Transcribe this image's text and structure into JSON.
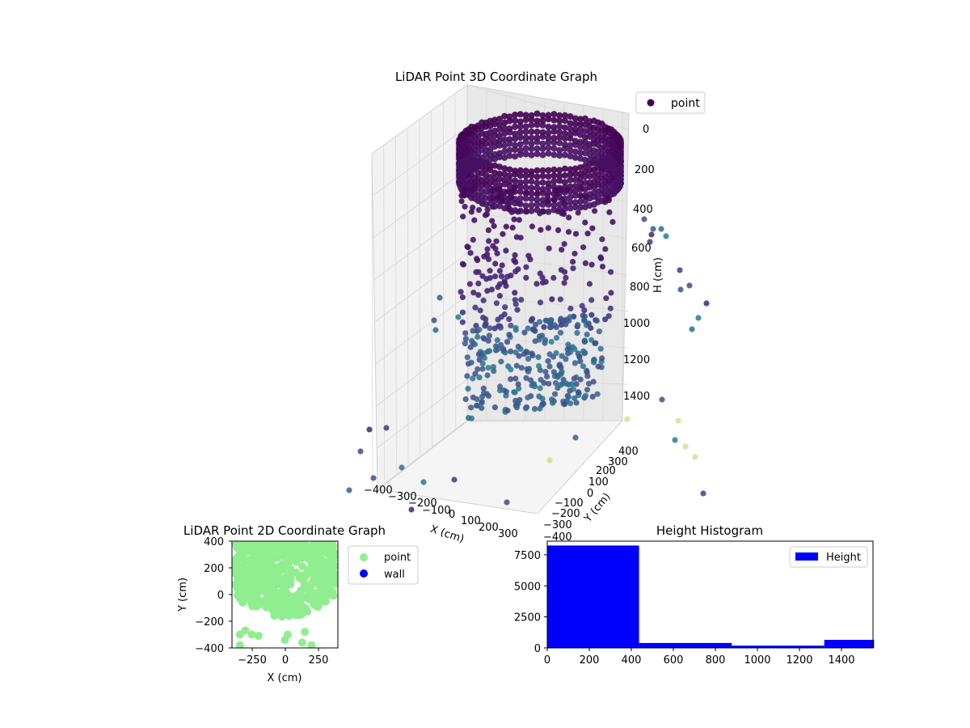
{
  "chart_data": [
    {
      "type": "scatter3d",
      "title": "LiDAR Point 3D Coordinate Graph",
      "xlabel": "X (cm)",
      "ylabel": "Y (cm)",
      "zlabel": "H (cm)",
      "xlim": [
        -400,
        400
      ],
      "ylim": [
        -400,
        400
      ],
      "zlim": [
        0,
        1550
      ],
      "z_inverted": true,
      "xticks": [
        "−400",
        "−300",
        "−200",
        "−100",
        "0",
        "100",
        "200",
        "300"
      ],
      "yticks": [
        "−400",
        "−300",
        "−200",
        "−100",
        "0",
        "100",
        "200",
        "300",
        "400"
      ],
      "zticks": [
        "0",
        "200",
        "400",
        "600",
        "800",
        "1000",
        "1200",
        "1400"
      ],
      "legend": {
        "labels": [
          "point"
        ],
        "placement": "top-right"
      },
      "colormap": "viridis",
      "grid": true,
      "series": [
        {
          "name": "point",
          "color": "#440154",
          "description_of_points": "upper ring wall near H 0-400 (cylinder shell), sparse points H 400-1000, floor cluster near H 1100-1500"
        }
      ]
    },
    {
      "type": "scatter",
      "title": "LiDAR Point 2D Coordinate Graph",
      "xlabel": "X (cm)",
      "ylabel": "Y (cm)",
      "xlim": [
        -400,
        400
      ],
      "ylim": [
        -400,
        400
      ],
      "xticks": [
        "−250",
        "0",
        "250"
      ],
      "yticks": [
        "−400",
        "−200",
        "0",
        "200",
        "400"
      ],
      "legend": {
        "labels": [
          "point",
          "wall"
        ],
        "placement": "outside-right"
      },
      "series": [
        {
          "name": "point",
          "color": "#90ee90"
        },
        {
          "name": "wall",
          "color": "#0000ff",
          "values": []
        }
      ]
    },
    {
      "type": "bar",
      "title": "Height Histogram",
      "xlabel": "",
      "ylabel": "",
      "xlim": [
        0,
        1550
      ],
      "ylim": [
        0,
        8600
      ],
      "xticks": [
        "0",
        "200",
        "400",
        "600",
        "800",
        "1000",
        "1200",
        "1400"
      ],
      "yticks": [
        "0",
        "2500",
        "5000",
        "7500"
      ],
      "legend": {
        "labels": [
          "Height"
        ],
        "placement": "top-right"
      },
      "series": [
        {
          "name": "Height",
          "color": "#0000ff",
          "bins": [
            {
              "start": 0,
              "end": 437,
              "count": 8250
            },
            {
              "start": 437,
              "end": 878,
              "count": 400
            },
            {
              "start": 878,
              "end": 1318,
              "count": 180
            },
            {
              "start": 1318,
              "end": 1555,
              "count": 650
            }
          ]
        }
      ]
    }
  ]
}
